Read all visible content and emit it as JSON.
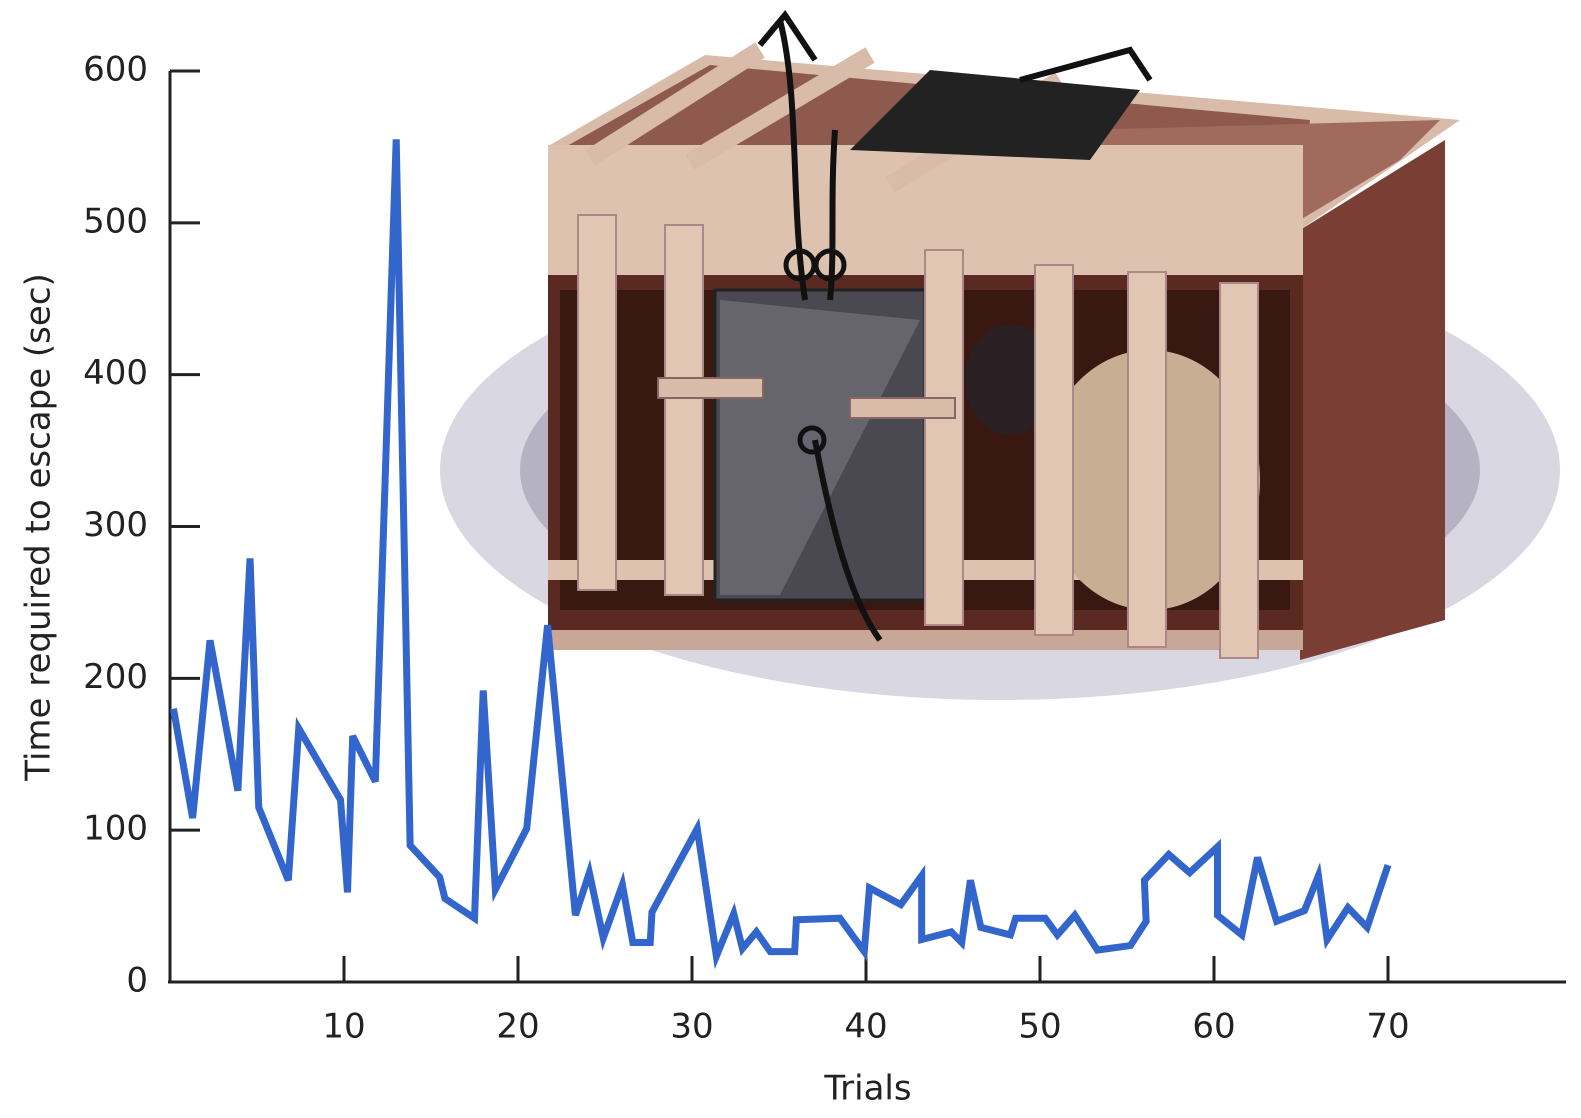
{
  "chart_data": {
    "type": "line",
    "x_label": "Trials",
    "y_label": "Time required to escape (sec)",
    "x": [
      0.2,
      1.3,
      2.3,
      3.9,
      4.6,
      5.1,
      6.8,
      7.4,
      9.8,
      10.2,
      10.5,
      11.8,
      13.0,
      13.8,
      15.5,
      15.8,
      17.5,
      18.0,
      18.7,
      20.5,
      21.7,
      23.3,
      24.1,
      24.9,
      26.0,
      26.6,
      27.6,
      27.7,
      30.3,
      31.4,
      32.4,
      32.9,
      33.7,
      34.5,
      35.9,
      36.0,
      38.5,
      39.9,
      40.2,
      42.0,
      43.2,
      43.2,
      44.9,
      45.5,
      46.0,
      46.6,
      48.3,
      48.6,
      50.3,
      51.0,
      52.0,
      53.3,
      55.2,
      56.1,
      56.0,
      57.4,
      58.6,
      60.2,
      60.2,
      61.6,
      62.5,
      63.6,
      65.2,
      66.0,
      66.5,
      67.7,
      68.8,
      70.0
    ],
    "series": [
      {
        "color": "#3366cc",
        "values": [
          180,
          108,
          225,
          126,
          279,
          115,
          67,
          167,
          120,
          59,
          162,
          132,
          555,
          90,
          69,
          55,
          42,
          192,
          61,
          101,
          235,
          44,
          72,
          29,
          64,
          26,
          26,
          46,
          101,
          17,
          45,
          22,
          33,
          20,
          20,
          41,
          42,
          20,
          62,
          51,
          70,
          28,
          33,
          26,
          67,
          36,
          31,
          42,
          42,
          31,
          44,
          21,
          24,
          40,
          67,
          84,
          72,
          89,
          44,
          31,
          82,
          40,
          47,
          70,
          28,
          49,
          36,
          77
        ]
      }
    ],
    "xlim": [
      0,
      80
    ],
    "ylim": [
      0,
      600
    ],
    "xticks": [
      10,
      20,
      30,
      40,
      50,
      60,
      70
    ],
    "yticks": [
      0,
      100,
      200,
      300,
      400,
      500,
      600
    ]
  }
}
